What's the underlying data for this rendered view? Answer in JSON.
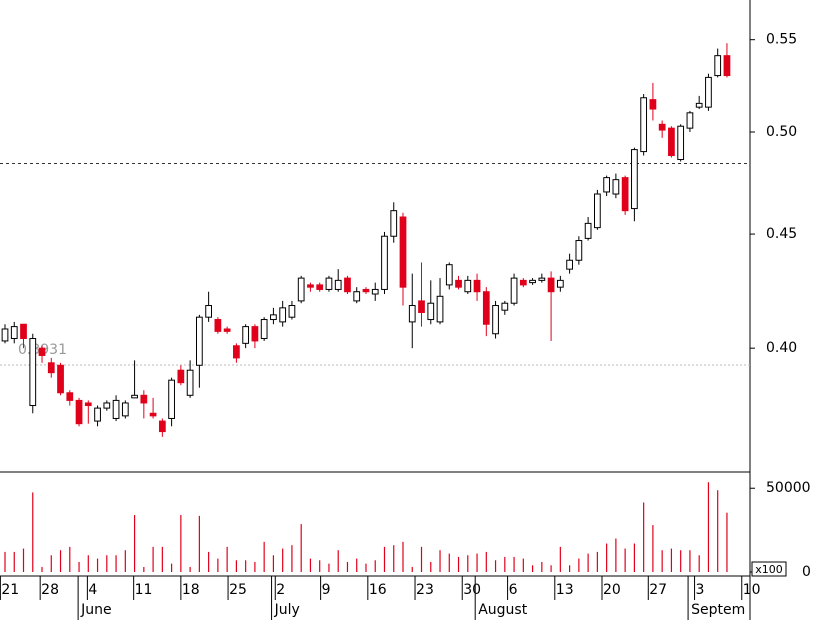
{
  "chart_data": {
    "type": "candlestick",
    "log_scale": true,
    "up_color": "#ffffff",
    "down_color": "#e0001b",
    "edge_color": "#000000",
    "volume_color": "#e0001b",
    "xlim": [
      -0.54,
      80.49
    ],
    "ylim": [
      0.352,
      0.573
    ],
    "yticks": [
      {
        "value": 0.4,
        "label": "0.40"
      },
      {
        "value": 0.45,
        "label": "0.45"
      },
      {
        "value": 0.5,
        "label": "0.50"
      },
      {
        "value": 0.55,
        "label": "0.55"
      }
    ],
    "hlines": [
      {
        "value": 0.484,
        "style": "dashed"
      },
      {
        "value": 0.3931,
        "label": "0.3931",
        "style": "dotted"
      }
    ],
    "volume_ylim": [
      0,
      58500
    ],
    "volume_yticks": [
      0,
      50000
    ],
    "volume_unit": "x100",
    "xticks": [
      {
        "value": -0.5,
        "label": "21"
      },
      {
        "value": 3.8,
        "label": "28"
      },
      {
        "value": 8.9,
        "label": "4"
      },
      {
        "value": 13.9,
        "label": "11"
      },
      {
        "value": 19,
        "label": "18"
      },
      {
        "value": 24.1,
        "label": "25"
      },
      {
        "value": 29.2,
        "label": "2"
      },
      {
        "value": 34.1,
        "label": "9"
      },
      {
        "value": 39.2,
        "label": "16"
      },
      {
        "value": 44.3,
        "label": "23"
      },
      {
        "value": 49.4,
        "label": "30"
      },
      {
        "value": 54.3,
        "label": "6"
      },
      {
        "value": 59.4,
        "label": "13"
      },
      {
        "value": 64.5,
        "label": "20"
      },
      {
        "value": 69.5,
        "label": "27"
      },
      {
        "value": 74.5,
        "label": "3"
      },
      {
        "value": 79.6,
        "label": "10"
      }
    ],
    "month_ticks": [
      {
        "value": 7.9,
        "label": "June"
      },
      {
        "value": 28.8,
        "label": "July"
      },
      {
        "value": 50.8,
        "label": "August"
      },
      {
        "value": 73.8,
        "label": "Septem"
      }
    ],
    "open": [
      0.403,
      0.404,
      0.41,
      0.377,
      0.4,
      0.394,
      0.393,
      0.382,
      0.379,
      0.378,
      0.371,
      0.376,
      0.372,
      0.373,
      0.38,
      0.381,
      0.374,
      0.371,
      0.372,
      0.391,
      0.381,
      0.393,
      0.413,
      0.412,
      0.408,
      0.401,
      0.402,
      0.409,
      0.404,
      0.412,
      0.411,
      0.413,
      0.42,
      0.427,
      0.427,
      0.425,
      0.425,
      0.43,
      0.42,
      0.425,
      0.423,
      0.425,
      0.449,
      0.458,
      0.411,
      0.42,
      0.412,
      0.411,
      0.427,
      0.429,
      0.424,
      0.429,
      0.424,
      0.406,
      0.416,
      0.419,
      0.429,
      0.428,
      0.429,
      0.43,
      0.426,
      0.434,
      0.438,
      0.448,
      0.453,
      0.47,
      0.469,
      0.477,
      0.462,
      0.49,
      0.517,
      0.504,
      0.502,
      0.486,
      0.502,
      0.513,
      0.513,
      0.53,
      0.541
    ],
    "high": [
      0.41,
      0.411,
      0.41,
      0.406,
      0.401,
      0.396,
      0.394,
      0.383,
      0.38,
      0.379,
      0.377,
      0.379,
      0.381,
      0.379,
      0.395,
      0.383,
      0.38,
      0.372,
      0.388,
      0.393,
      0.395,
      0.414,
      0.424,
      0.413,
      0.409,
      0.402,
      0.41,
      0.41,
      0.413,
      0.417,
      0.42,
      0.42,
      0.431,
      0.428,
      0.428,
      0.431,
      0.434,
      0.431,
      0.426,
      0.426,
      0.428,
      0.451,
      0.465,
      0.46,
      0.432,
      0.437,
      0.429,
      0.43,
      0.437,
      0.431,
      0.431,
      0.432,
      0.426,
      0.42,
      0.42,
      0.432,
      0.43,
      0.43,
      0.432,
      0.433,
      0.431,
      0.441,
      0.449,
      0.458,
      0.471,
      0.478,
      0.479,
      0.478,
      0.492,
      0.52,
      0.526,
      0.506,
      0.503,
      0.504,
      0.511,
      0.519,
      0.531,
      0.545,
      0.548
    ],
    "low": [
      0.402,
      0.402,
      0.4,
      0.374,
      0.394,
      0.388,
      0.381,
      0.377,
      0.369,
      0.37,
      0.369,
      0.375,
      0.371,
      0.372,
      0.38,
      0.372,
      0.372,
      0.365,
      0.369,
      0.385,
      0.38,
      0.384,
      0.411,
      0.406,
      0.406,
      0.394,
      0.4,
      0.4,
      0.403,
      0.41,
      0.409,
      0.412,
      0.419,
      0.424,
      0.424,
      0.424,
      0.424,
      0.423,
      0.419,
      0.423,
      0.42,
      0.423,
      0.446,
      0.418,
      0.4,
      0.409,
      0.41,
      0.41,
      0.425,
      0.425,
      0.423,
      0.42,
      0.405,
      0.404,
      0.414,
      0.418,
      0.426,
      0.427,
      0.428,
      0.403,
      0.424,
      0.432,
      0.436,
      0.447,
      0.452,
      0.468,
      0.467,
      0.459,
      0.456,
      0.488,
      0.506,
      0.497,
      0.487,
      0.485,
      0.5,
      0.512,
      0.511,
      0.529,
      0.529
    ],
    "close": [
      0.408,
      0.409,
      0.404,
      0.404,
      0.397,
      0.39,
      0.382,
      0.379,
      0.37,
      0.377,
      0.376,
      0.378,
      0.379,
      0.378,
      0.381,
      0.378,
      0.373,
      0.367,
      0.387,
      0.386,
      0.391,
      0.413,
      0.418,
      0.407,
      0.407,
      0.396,
      0.409,
      0.403,
      0.412,
      0.414,
      0.417,
      0.418,
      0.43,
      0.426,
      0.425,
      0.43,
      0.429,
      0.424,
      0.424,
      0.424,
      0.425,
      0.449,
      0.461,
      0.426,
      0.418,
      0.415,
      0.419,
      0.422,
      0.436,
      0.426,
      0.429,
      0.424,
      0.41,
      0.418,
      0.419,
      0.43,
      0.427,
      0.429,
      0.43,
      0.424,
      0.429,
      0.438,
      0.447,
      0.455,
      0.469,
      0.477,
      0.476,
      0.461,
      0.491,
      0.518,
      0.512,
      0.501,
      0.488,
      0.503,
      0.51,
      0.515,
      0.529,
      0.541,
      0.53
    ],
    "volume": [
      12000,
      12000,
      14000,
      47500,
      3000,
      10000,
      13000,
      15000,
      6000,
      10000,
      8000,
      10000,
      10000,
      13000,
      34000,
      3000,
      15000,
      15000,
      5000,
      34000,
      3000,
      33500,
      12000,
      8000,
      15000,
      7000,
      7000,
      6000,
      18000,
      10000,
      14000,
      16000,
      28600,
      8000,
      7000,
      5000,
      13000,
      6000,
      8000,
      5000,
      7000,
      15000,
      16000,
      18000,
      3000,
      15000,
      6000,
      13000,
      11000,
      9000,
      10000,
      11000,
      12000,
      7000,
      9000,
      9000,
      8000,
      4000,
      6000,
      4000,
      15000,
      4000,
      8000,
      11000,
      12000,
      17000,
      20000,
      14000,
      17000,
      41500,
      28000,
      13000,
      14000,
      13000,
      13000,
      10000,
      53600,
      48800,
      35400
    ]
  }
}
